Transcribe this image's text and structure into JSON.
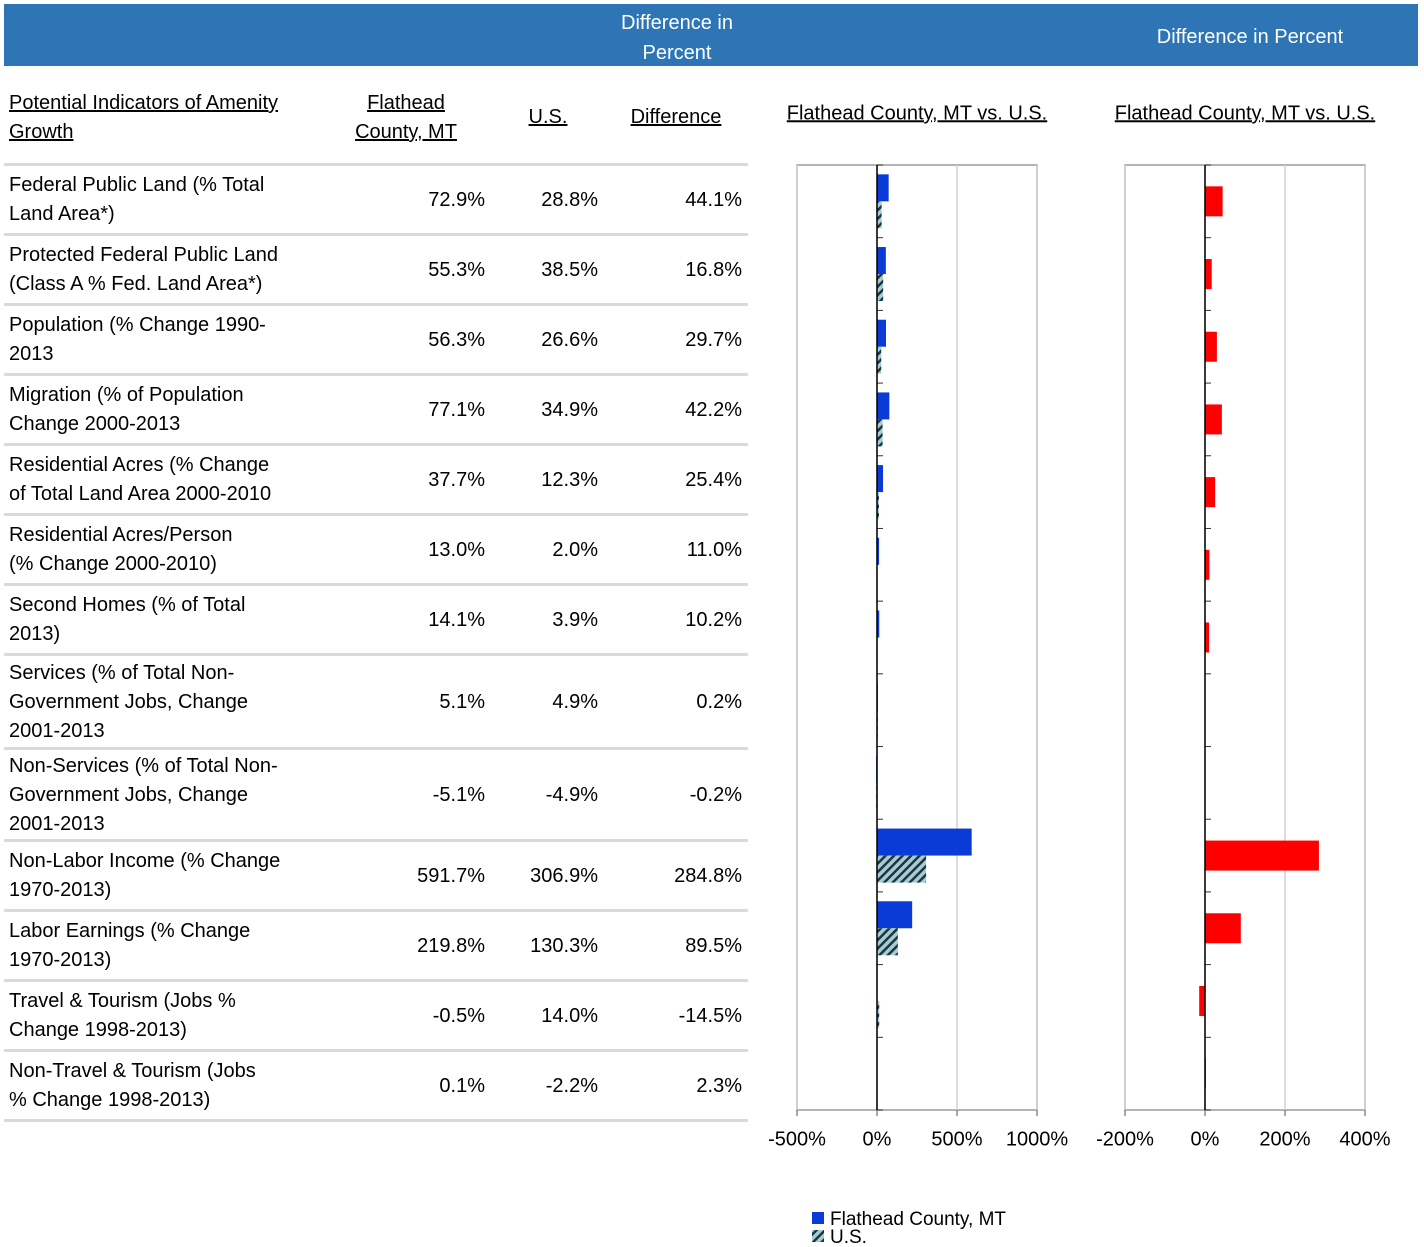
{
  "header": {
    "difference_banner": "Difference in\nPercent",
    "chart_banner": "Difference in Percent"
  },
  "table": {
    "columns": [
      "Potential Indicators of Amenity\nGrowth",
      "Flathead\nCounty, MT",
      "U.S.",
      "Difference"
    ],
    "rows": [
      [
        "Federal Public Land (% Total\nLand Area*)",
        "72.9%",
        "28.8%",
        "44.1%"
      ],
      [
        "Protected Federal Public Land\n(Class A %  Fed. Land Area*)",
        "55.3%",
        "38.5%",
        "16.8%"
      ],
      [
        "Population (% Change 1990-\n2013",
        "56.3%",
        "26.6%",
        "29.7%"
      ],
      [
        "Migration (% of Population\nChange 2000-2013",
        "77.1%",
        "34.9%",
        "42.2%"
      ],
      [
        "Residential Acres (% Change\nof Total Land Area 2000-2010",
        "37.7%",
        "12.3%",
        "25.4%"
      ],
      [
        "Residential Acres/Person\n(% Change 2000-2010)",
        "13.0%",
        "2.0%",
        "11.0%"
      ],
      [
        "Second Homes (% of Total\n2013)",
        "14.1%",
        "3.9%",
        "10.2%"
      ],
      [
        "Services (% of Total Non-\nGovernment Jobs, Change\n2001-2013",
        "5.1%",
        "4.9%",
        "0.2%"
      ],
      [
        "Non-Services (% of Total Non-\nGovernment Jobs, Change\n2001-2013",
        "-5.1%",
        "-4.9%",
        "-0.2%"
      ],
      [
        "Non-Labor Income (% Change\n1970-2013)",
        "591.7%",
        "306.9%",
        "284.8%"
      ],
      [
        "Labor Earnings (% Change\n1970-2013)",
        "219.8%",
        "130.3%",
        "89.5%"
      ],
      [
        "Travel & Tourism (Jobs %\nChange 1998-2013)",
        "-0.5%",
        "14.0%",
        "-14.5%"
      ],
      [
        "Non-Travel & Tourism (Jobs\n% Change 1998-2013)",
        "0.1%",
        "-2.2%",
        "2.3%"
      ]
    ]
  },
  "chart_data": [
    {
      "type": "bar",
      "horizontal": true,
      "title": "Flathead County, MT vs. U.S.",
      "series": [
        {
          "name": "Flathead County, MT",
          "color": "#0a3bd6",
          "values": [
            72.9,
            55.3,
            56.3,
            77.1,
            37.7,
            13.0,
            14.1,
            5.1,
            -5.1,
            591.7,
            219.8,
            -0.5,
            0.1
          ]
        },
        {
          "name": "U.S.",
          "color": "#a3cdd3",
          "pattern": "hatch",
          "values": [
            28.8,
            38.5,
            26.6,
            34.9,
            12.3,
            2.0,
            3.9,
            4.9,
            -4.9,
            306.9,
            130.3,
            14.0,
            -2.2
          ]
        }
      ],
      "xlim": [
        -500,
        1000
      ],
      "xticks": [
        {
          "value": -500,
          "label": "-500%"
        },
        {
          "value": 0,
          "label": "0%"
        },
        {
          "value": 500,
          "label": "500%"
        },
        {
          "value": 1000,
          "label": "1000%"
        }
      ],
      "grid": true,
      "legend": "bottom"
    },
    {
      "type": "bar",
      "horizontal": true,
      "title": "Flathead County, MT vs. U.S.",
      "color": "#ff0000",
      "values": [
        44.1,
        16.8,
        29.7,
        42.2,
        25.4,
        11.0,
        10.2,
        0.2,
        -0.2,
        284.8,
        89.5,
        -14.5,
        2.3
      ],
      "xlim": [
        -200,
        400
      ],
      "xticks": [
        {
          "value": -200,
          "label": "-200%"
        },
        {
          "value": 0,
          "label": "0%"
        },
        {
          "value": 200,
          "label": "200%"
        },
        {
          "value": 400,
          "label": "400%"
        }
      ],
      "grid": true
    }
  ]
}
